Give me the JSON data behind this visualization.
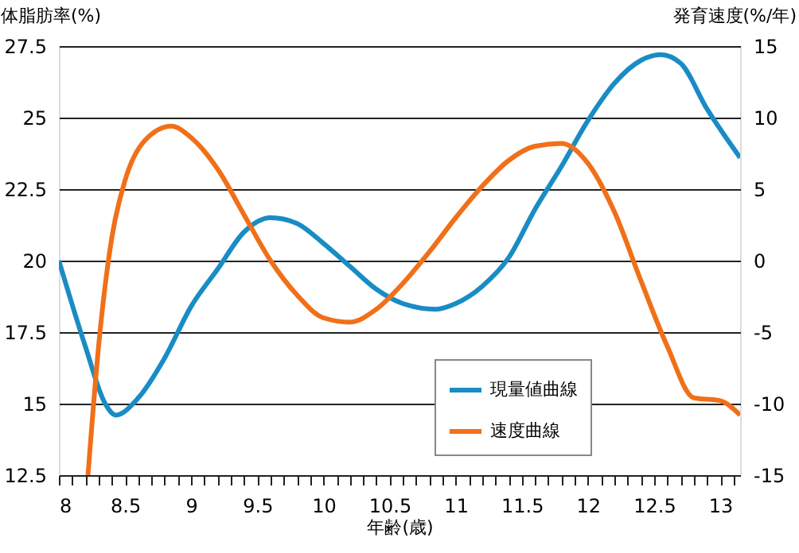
{
  "chart_data": {
    "type": "line",
    "xlabel": "年齢(歳)",
    "ylabel": "体脂肪率(%)",
    "y2label": "発育速度(%/年)",
    "xlim": [
      8,
      13.15
    ],
    "ylim": [
      12.5,
      27.5
    ],
    "y2lim": [
      -15,
      15
    ],
    "xticks": [
      8,
      {
        "value": 8.1,
        "label": null
      },
      {
        "value": 8.2,
        "label": null
      },
      {
        "value": 8.3,
        "label": null
      },
      {
        "value": 8.4,
        "label": null
      },
      8.5,
      {
        "value": 8.6,
        "label": null
      },
      {
        "value": 8.7,
        "label": null
      },
      {
        "value": 8.8,
        "label": null
      },
      {
        "value": 8.9,
        "label": null
      },
      9,
      {
        "value": 9.1,
        "label": null
      },
      {
        "value": 9.2,
        "label": null
      },
      {
        "value": 9.3,
        "label": null
      },
      {
        "value": 9.4,
        "label": null
      },
      9.5,
      {
        "value": 9.6,
        "label": null
      },
      {
        "value": 9.7,
        "label": null
      },
      {
        "value": 9.8,
        "label": null
      },
      {
        "value": 9.9,
        "label": null
      },
      10,
      {
        "value": 10.1,
        "label": null
      },
      {
        "value": 10.2,
        "label": null
      },
      {
        "value": 10.3,
        "label": null
      },
      {
        "value": 10.4,
        "label": null
      },
      10.5,
      {
        "value": 10.6,
        "label": null
      },
      {
        "value": 10.7,
        "label": null
      },
      {
        "value": 10.8,
        "label": null
      },
      {
        "value": 10.9,
        "label": null
      },
      11,
      {
        "value": 11.1,
        "label": null
      },
      {
        "value": 11.2,
        "label": null
      },
      {
        "value": 11.3,
        "label": null
      },
      {
        "value": 11.4,
        "label": null
      },
      11.5,
      {
        "value": 11.6,
        "label": null
      },
      {
        "value": 11.7,
        "label": null
      },
      {
        "value": 11.8,
        "label": null
      },
      {
        "value": 11.9,
        "label": null
      },
      12,
      {
        "value": 12.1,
        "label": null
      },
      {
        "value": 12.2,
        "label": null
      },
      {
        "value": 12.3,
        "label": null
      },
      {
        "value": 12.4,
        "label": null
      },
      12.5,
      {
        "value": 12.6,
        "label": null
      },
      {
        "value": 12.7,
        "label": null
      },
      {
        "value": 12.8,
        "label": null
      },
      {
        "value": 12.9,
        "label": null
      },
      13,
      {
        "value": 13.1,
        "label": null
      }
    ],
    "yticks": [
      12.5,
      15,
      17.5,
      20,
      22.5,
      25,
      27.5
    ],
    "y2ticks": [
      -15,
      -10,
      -5,
      0,
      5,
      10,
      15
    ],
    "grid": "y",
    "legend": "bottom right",
    "line_style": "solid",
    "marker": "none",
    "series": [
      {
        "name": "現量値曲線",
        "color": "#1a8cc4",
        "x": [
          8,
          8.2,
          8.35,
          8.43,
          8.6,
          8.8,
          9.0,
          9.2,
          9.4,
          9.6,
          9.8,
          10.0,
          10.2,
          10.4,
          10.6,
          10.85,
          11.0,
          11.2,
          11.4,
          11.6,
          11.8,
          12.0,
          12.2,
          12.4,
          12.55,
          12.7,
          12.9,
          13.15
        ],
        "values": [
          20,
          17,
          15,
          14.6,
          15.2,
          16.6,
          18.4,
          19.7,
          21.0,
          21.5,
          21.3,
          20.6,
          19.8,
          19.0,
          18.5,
          18.3,
          18.5,
          19.1,
          20.1,
          21.8,
          23.3,
          24.9,
          26.2,
          27.0,
          27.2,
          26.9,
          25.3,
          23.6
        ]
      },
      {
        "name": "速度曲線",
        "color": "#f07019",
        "axis": "y2",
        "x": [
          8.22,
          8.3,
          8.4,
          8.5,
          8.65,
          8.85,
          9.0,
          9.2,
          9.4,
          9.6,
          9.8,
          10.0,
          10.2,
          10.4,
          10.6,
          10.8,
          11.0,
          11.2,
          11.4,
          11.6,
          11.8,
          12.0,
          12.2,
          12.4,
          12.6,
          12.8,
          13.0,
          13.15
        ],
        "values": [
          -15,
          -6,
          1.6,
          5.6,
          8.4,
          9.4,
          8.6,
          6.4,
          3.2,
          0,
          -2.4,
          -4,
          -4.3,
          -3.4,
          -1.6,
          0.6,
          3,
          5.2,
          7,
          8,
          8.2,
          6.8,
          3.4,
          -1.4,
          -6,
          -9.6,
          -9.8,
          -10.8
        ]
      }
    ]
  }
}
